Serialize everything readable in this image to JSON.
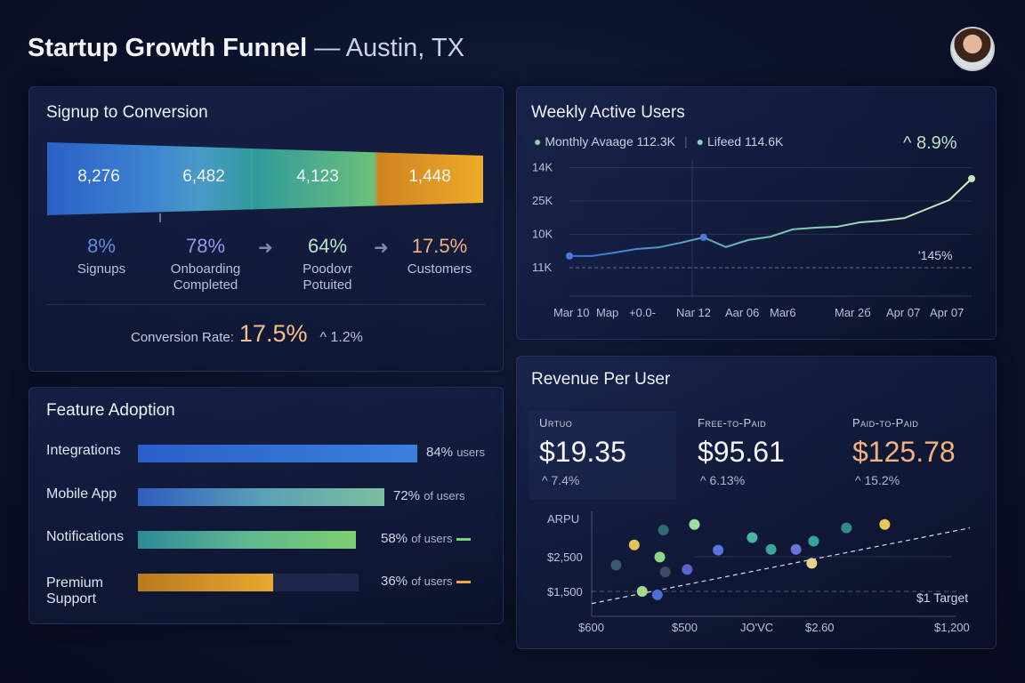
{
  "header": {
    "title": "Startup Growth Funnel",
    "subtitle": "— Austin, TX"
  },
  "funnel": {
    "title": "Signup to Conversion",
    "stages": [
      {
        "value": "8,276",
        "pct": "8%",
        "label": "Signups",
        "color": "#5b8fe0"
      },
      {
        "value": "6,482",
        "pct": "78%",
        "label": "Onboarding Completed",
        "color": "#9a96e8"
      },
      {
        "value": "4,123",
        "pct": "64%",
        "label": "Poodovr Potuited",
        "color": "#b9e6c4"
      },
      {
        "value": "1,448",
        "pct": "17.5%",
        "label": "Customers",
        "color": "#f2b27a"
      }
    ],
    "conversion_label": "Conversion Rate:",
    "conversion_value": "17.5%",
    "conversion_delta": "^ 1.2%"
  },
  "features": {
    "title": "Feature Adoption",
    "items": [
      {
        "label": "Integrations",
        "value": 84,
        "pct": "84%",
        "suffix": "users"
      },
      {
        "label": "Mobile App",
        "value": 72,
        "pct": "72%",
        "suffix": "of users"
      },
      {
        "label": "Notifications",
        "value": 58,
        "pct": "58%",
        "suffix": "of users"
      },
      {
        "label": "Premium Support",
        "value": 36,
        "pct": "36%",
        "suffix": "of users"
      }
    ]
  },
  "chart_data": [
    {
      "type": "line",
      "title": "Weekly Active Users",
      "legend": [
        "Monthly Avaage 112.3K",
        "Lifeed 114.6K"
      ],
      "delta": "^ 8.9%",
      "annotation": "'145%",
      "x_tick_labels": [
        "Mar 10",
        "Map",
        "+0.0-",
        "Nar 12",
        "Aar 06",
        "Mar6",
        "Mar 2б",
        "Apr 07",
        "Apr 07"
      ],
      "y_tick_labels": [
        "11K",
        "10K",
        "25K",
        "14K"
      ],
      "grid": true,
      "values": [
        0.35,
        0.35,
        0.45,
        0.56,
        0.61,
        0.75,
        0.91,
        0.62,
        0.83,
        0.93,
        1.15,
        1.2,
        1.23,
        1.36,
        1.41,
        1.49,
        1.76,
        2.03,
        2.67
      ]
    },
    {
      "type": "scatter",
      "title": "Revenue Per User",
      "ylabel": "ARPU",
      "y_tick_labels": [
        "$1,500",
        "$2,500"
      ],
      "x_tick_labels": [
        "$600",
        "$500",
        "JO'VC",
        "$2.60",
        "$1,200"
      ],
      "target_label": "$1 Target",
      "target_value": 1500,
      "ylim": [
        1000,
        3900
      ],
      "xlim": [
        600,
        1200
      ],
      "points": [
        {
          "x": 670,
          "y": 2840,
          "c": "#e3c35a"
        },
        {
          "x": 640,
          "y": 2260,
          "c": "#3a5a6e"
        },
        {
          "x": 712,
          "y": 2490,
          "c": "#8fd58a"
        },
        {
          "x": 683,
          "y": 1500,
          "c": "#a6d88c"
        },
        {
          "x": 718,
          "y": 3270,
          "c": "#2f6e70"
        },
        {
          "x": 721,
          "y": 2060,
          "c": "#3b4a66"
        },
        {
          "x": 708,
          "y": 1400,
          "c": "#4d6ed6"
        },
        {
          "x": 769,
          "y": 3430,
          "c": "#9ee09a"
        },
        {
          "x": 757,
          "y": 2130,
          "c": "#5a63d4"
        },
        {
          "x": 808,
          "y": 2690,
          "c": "#5b74dc"
        },
        {
          "x": 864,
          "y": 3050,
          "c": "#46b5a0"
        },
        {
          "x": 895,
          "y": 2710,
          "c": "#3aa59a"
        },
        {
          "x": 936,
          "y": 2710,
          "c": "#6a74d8"
        },
        {
          "x": 965,
          "y": 2950,
          "c": "#2fa59a"
        },
        {
          "x": 962,
          "y": 2310,
          "c": "#e8d38a"
        },
        {
          "x": 1019,
          "y": 3330,
          "c": "#2e8c86"
        },
        {
          "x": 1082,
          "y": 3430,
          "c": "#e6c55a"
        }
      ]
    }
  ],
  "revenue": {
    "kpis": [
      {
        "label": "Urtuo",
        "value": "$19.35",
        "delta": "^ 7.4%",
        "color": "#f5f7fc"
      },
      {
        "label": "Free-to-Paid",
        "value": "$95.61",
        "delta": "^ 6.13%",
        "color": "#f5f7fc"
      },
      {
        "label": "Paid-to-Paid",
        "value": "$125.78",
        "delta": "^ 15.2%",
        "color": "#f0b27e"
      }
    ]
  },
  "colors": {
    "accent_orange": "#f0a63a",
    "accent_green": "#7ccf7a",
    "accent_blue": "#3a7ad8"
  }
}
